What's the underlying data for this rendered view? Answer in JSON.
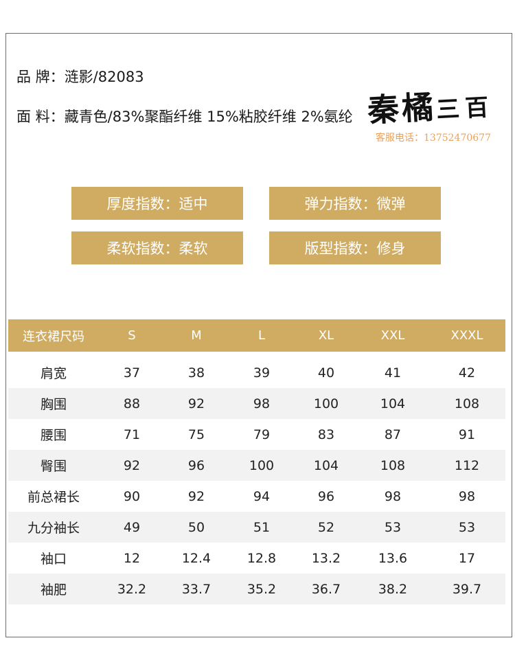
{
  "info": {
    "brand_label": "品 牌：",
    "brand_value": "涟影/82083",
    "fabric_label": "面 料：",
    "fabric_value": "藏青色/83%聚酯纤维 15%粘胶纤维 2%氨纶"
  },
  "watermark": {
    "calligraphy_main": "秦橘",
    "calligraphy_small": "三百",
    "phone": "客服电话：13752470677",
    "phone_color": "#e9a25a"
  },
  "indices": [
    {
      "label": "厚度指数：适中"
    },
    {
      "label": "弹力指数：微弹"
    },
    {
      "label": "柔软指数：柔软"
    },
    {
      "label": "版型指数：修身"
    }
  ],
  "accent_color": "#cfac62",
  "size_table": {
    "headers": [
      "连衣裙尺码",
      "S",
      "M",
      "L",
      "XL",
      "XXL",
      "XXXL"
    ],
    "rows": [
      [
        "肩宽",
        "37",
        "38",
        "39",
        "40",
        "41",
        "42"
      ],
      [
        "胸围",
        "88",
        "92",
        "98",
        "100",
        "104",
        "108"
      ],
      [
        "腰围",
        "71",
        "75",
        "79",
        "83",
        "87",
        "91"
      ],
      [
        "臀围",
        "92",
        "96",
        "100",
        "104",
        "108",
        "112"
      ],
      [
        "前总裙长",
        "90",
        "92",
        "94",
        "96",
        "98",
        "98"
      ],
      [
        "九分袖长",
        "49",
        "50",
        "51",
        "52",
        "53",
        "53"
      ],
      [
        "袖口",
        "12",
        "12.4",
        "12.8",
        "13.2",
        "13.6",
        "17"
      ],
      [
        "袖肥",
        "32.2",
        "33.7",
        "35.2",
        "36.7",
        "38.2",
        "39.7"
      ]
    ]
  }
}
